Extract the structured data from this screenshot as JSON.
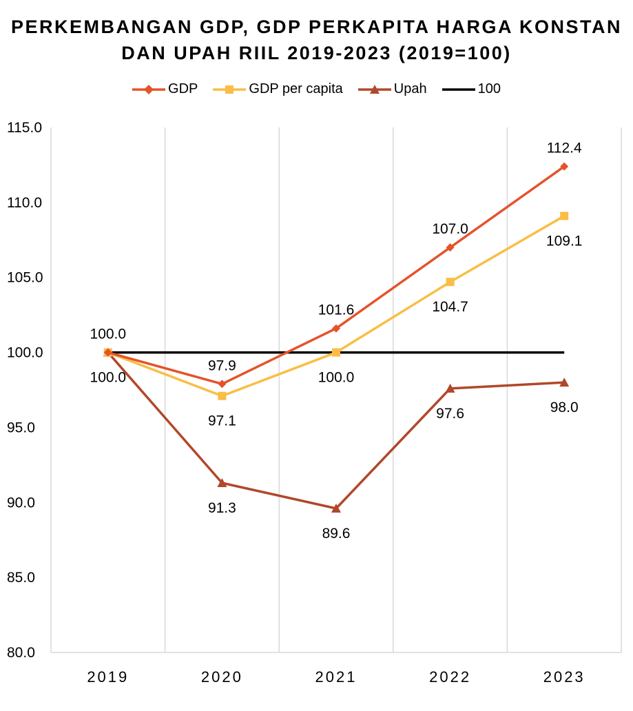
{
  "chart_data": {
    "type": "line",
    "title_line1": "PERKEMBANGAN GDP, GDP PERKAPITA HARGA KONSTAN",
    "title_line2": "DAN UPAH RIIL 2019-2023 (2019=100)",
    "categories": [
      "2019",
      "2020",
      "2021",
      "2022",
      "2023"
    ],
    "ylim": [
      80,
      115
    ],
    "ytick_labels": [
      "80.0",
      "85.0",
      "90.0",
      "95.0",
      "100.0",
      "105.0",
      "110.0",
      "115.0"
    ],
    "yticks": [
      80,
      85,
      90,
      95,
      100,
      105,
      110,
      115
    ],
    "grid": "vertical",
    "legend_position": "top",
    "series": [
      {
        "name": "GDP",
        "color": "#E4532A",
        "marker": "diamond",
        "values": [
          100.0,
          97.9,
          101.6,
          107.0,
          112.4
        ],
        "labels": [
          "100.0",
          "97.9",
          "101.6",
          "107.0",
          "112.4"
        ],
        "label_side": [
          "above",
          "above",
          "above",
          "above",
          "above"
        ]
      },
      {
        "name": "GDP per capita",
        "color": "#F9BE45",
        "marker": "square",
        "values": [
          100.0,
          97.1,
          100.0,
          104.7,
          109.1
        ],
        "labels": [
          "100.0",
          "97.1",
          "100.0",
          "104.7",
          "109.1"
        ],
        "label_side": [
          "below",
          "below",
          "below",
          "below",
          "below"
        ]
      },
      {
        "name": "Upah",
        "color": "#B0482A",
        "marker": "triangle",
        "values": [
          100.0,
          91.3,
          89.6,
          97.6,
          98.0
        ],
        "labels": [
          "",
          "91.3",
          "89.6",
          "97.6",
          "98.0"
        ],
        "label_side": [
          "none",
          "below",
          "below",
          "below",
          "below"
        ]
      },
      {
        "name": "100",
        "color": "#000000",
        "marker": "none",
        "values": [
          100,
          100,
          100,
          100,
          100
        ],
        "labels": [
          "",
          "",
          "",
          "",
          ""
        ],
        "label_side": [
          "none",
          "none",
          "none",
          "none",
          "none"
        ]
      }
    ]
  }
}
